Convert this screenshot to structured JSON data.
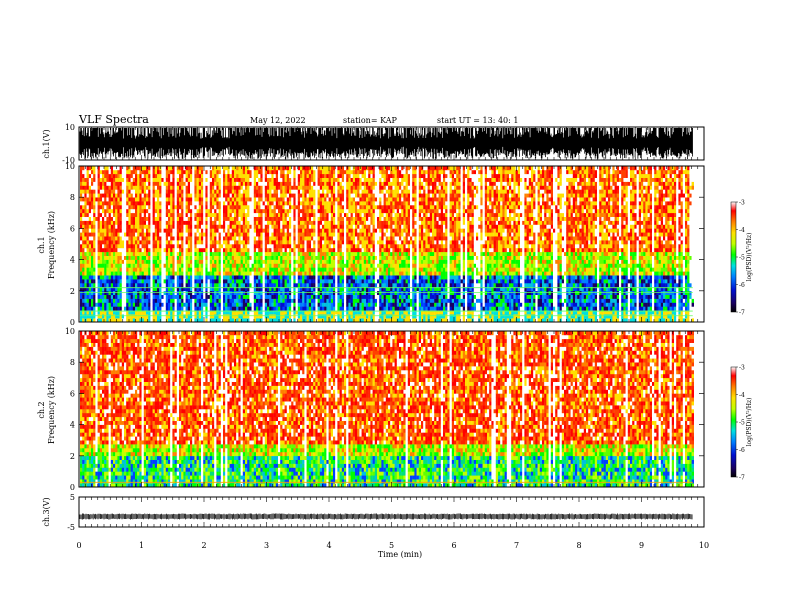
{
  "header": {
    "title": "VLF Spectra",
    "date": "May 12, 2022",
    "station": "station= KAP",
    "start_ut": "start UT =  13: 40: 1"
  },
  "colors": {
    "spectrogram_scale": [
      "#000000",
      "#1a0060",
      "#0010d0",
      "#0080ff",
      "#00e0e0",
      "#00ff00",
      "#c0ff00",
      "#ffe000",
      "#ff8000",
      "#ff0000",
      "#ffffff"
    ],
    "frame": "#000000"
  },
  "chart_data": [
    {
      "type": "line",
      "ylabel": "ch.1(V)",
      "ylim": [
        -10,
        10
      ],
      "yticks": [
        "10",
        "-10"
      ],
      "description": "broadband waveform, saturated excursions between -10 and 10 V"
    },
    {
      "type": "heatmap",
      "ylabel": "ch.1\nFrequency (kHz)",
      "ylim": [
        0,
        10
      ],
      "yticks": [
        "0",
        "2",
        "4",
        "6",
        "8",
        "10"
      ],
      "colorbar": {
        "label": "log(PSD)(V²/Hz)",
        "ticks": [
          "-3",
          "-4",
          "-5",
          "-6",
          "-7"
        ],
        "range": [
          -7,
          -3
        ]
      }
    },
    {
      "type": "heatmap",
      "ylabel": "ch.2\nFrequency (kHz)",
      "ylim": [
        0,
        10
      ],
      "yticks": [
        "0",
        "2",
        "4",
        "6",
        "8",
        "10"
      ],
      "colorbar": {
        "label": "log(PSD)(V²/Hz)",
        "ticks": [
          "-3",
          "-4",
          "-5",
          "-6",
          "-7"
        ],
        "range": [
          -7,
          -3
        ]
      }
    },
    {
      "type": "line",
      "ylabel": "ch.3(V)",
      "ylim": [
        -5,
        5
      ],
      "yticks": [
        "5",
        "-5"
      ],
      "level": -1.5
    }
  ],
  "x_axis": {
    "label": "Time  (min)",
    "ticks": [
      "0",
      "1",
      "2",
      "3",
      "4",
      "5",
      "6",
      "7",
      "8",
      "9",
      "10"
    ],
    "xlim": [
      0,
      10
    ],
    "data_end": 9.82
  }
}
